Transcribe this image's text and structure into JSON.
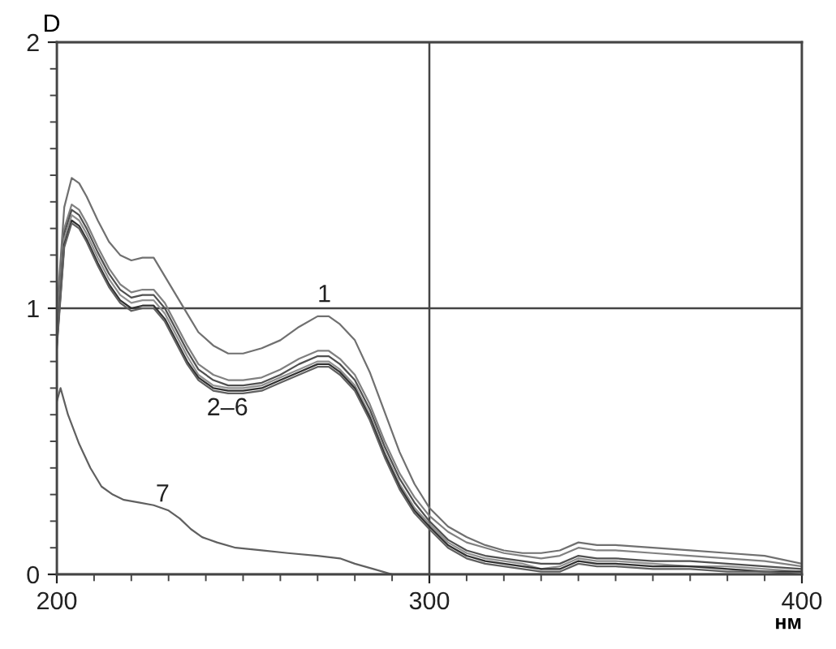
{
  "chart_data": {
    "type": "line",
    "xlabel": "нм",
    "ylabel": "D",
    "x": [
      200,
      202,
      204,
      206,
      208,
      211,
      214,
      217,
      220,
      223,
      226,
      229,
      232,
      235,
      238,
      242,
      246,
      250,
      255,
      260,
      265,
      270,
      273,
      276,
      280,
      284,
      288,
      292,
      296,
      300,
      305,
      310,
      315,
      320,
      325,
      330,
      335,
      340,
      345,
      350,
      360,
      370,
      380,
      390,
      400
    ],
    "series": [
      {
        "color": "#707070",
        "values": [
          0.98,
          1.38,
          1.49,
          1.47,
          1.42,
          1.33,
          1.25,
          1.2,
          1.18,
          1.19,
          1.19,
          1.12,
          1.05,
          0.98,
          0.91,
          0.86,
          0.83,
          0.83,
          0.85,
          0.88,
          0.93,
          0.97,
          0.97,
          0.94,
          0.88,
          0.76,
          0.61,
          0.46,
          0.34,
          0.25,
          0.18,
          0.14,
          0.11,
          0.09,
          0.08,
          0.08,
          0.09,
          0.12,
          0.11,
          0.11,
          0.1,
          0.09,
          0.08,
          0.07,
          0.04
        ]
      },
      {
        "color": "#808080",
        "values": [
          0.9,
          1.3,
          1.39,
          1.37,
          1.32,
          1.23,
          1.15,
          1.09,
          1.06,
          1.07,
          1.07,
          1.02,
          0.94,
          0.86,
          0.79,
          0.75,
          0.73,
          0.73,
          0.74,
          0.77,
          0.81,
          0.84,
          0.84,
          0.81,
          0.75,
          0.64,
          0.5,
          0.38,
          0.29,
          0.22,
          0.16,
          0.12,
          0.1,
          0.08,
          0.07,
          0.06,
          0.07,
          0.1,
          0.09,
          0.09,
          0.08,
          0.07,
          0.06,
          0.05,
          0.03
        ]
      },
      {
        "color": "#505050",
        "values": [
          0.88,
          1.28,
          1.37,
          1.35,
          1.3,
          1.21,
          1.13,
          1.07,
          1.04,
          1.05,
          1.05,
          1.0,
          0.92,
          0.84,
          0.77,
          0.73,
          0.71,
          0.71,
          0.72,
          0.75,
          0.79,
          0.82,
          0.82,
          0.79,
          0.73,
          0.62,
          0.48,
          0.36,
          0.27,
          0.2,
          0.13,
          0.09,
          0.07,
          0.06,
          0.05,
          0.04,
          0.04,
          0.07,
          0.06,
          0.06,
          0.05,
          0.05,
          0.04,
          0.03,
          0.02
        ]
      },
      {
        "color": "#909090",
        "values": [
          0.87,
          1.26,
          1.35,
          1.33,
          1.28,
          1.19,
          1.11,
          1.05,
          1.02,
          1.03,
          1.03,
          0.98,
          0.9,
          0.82,
          0.75,
          0.71,
          0.7,
          0.7,
          0.71,
          0.74,
          0.77,
          0.8,
          0.8,
          0.77,
          0.71,
          0.6,
          0.46,
          0.34,
          0.25,
          0.19,
          0.12,
          0.08,
          0.06,
          0.05,
          0.04,
          0.02,
          0.03,
          0.06,
          0.05,
          0.05,
          0.04,
          0.03,
          0.03,
          0.02,
          0.01
        ]
      },
      {
        "color": "#303030",
        "values": [
          0.86,
          1.24,
          1.33,
          1.31,
          1.26,
          1.17,
          1.09,
          1.03,
          1.0,
          1.01,
          1.01,
          0.96,
          0.88,
          0.8,
          0.74,
          0.7,
          0.69,
          0.69,
          0.7,
          0.73,
          0.76,
          0.79,
          0.79,
          0.76,
          0.7,
          0.59,
          0.45,
          0.33,
          0.24,
          0.18,
          0.11,
          0.07,
          0.05,
          0.04,
          0.03,
          0.02,
          0.02,
          0.05,
          0.04,
          0.04,
          0.03,
          0.03,
          0.02,
          0.01,
          0.01
        ]
      },
      {
        "color": "#606060",
        "values": [
          0.85,
          1.23,
          1.32,
          1.3,
          1.25,
          1.16,
          1.08,
          1.02,
          0.99,
          1.0,
          1.0,
          0.95,
          0.87,
          0.79,
          0.73,
          0.69,
          0.68,
          0.68,
          0.69,
          0.72,
          0.75,
          0.78,
          0.78,
          0.75,
          0.69,
          0.58,
          0.44,
          0.32,
          0.23,
          0.17,
          0.1,
          0.06,
          0.04,
          0.03,
          0.02,
          0.01,
          0.01,
          0.04,
          0.03,
          0.03,
          0.02,
          0.02,
          0.01,
          0.01,
          0.0
        ]
      },
      {
        "color": "#606060",
        "x": [
          200,
          201,
          203,
          206,
          209,
          212,
          215,
          218,
          222,
          226,
          230,
          233,
          236,
          239,
          243,
          248,
          255,
          262,
          270,
          276,
          280,
          285,
          290
        ],
        "values": [
          0.65,
          0.7,
          0.6,
          0.49,
          0.4,
          0.33,
          0.3,
          0.28,
          0.27,
          0.26,
          0.24,
          0.21,
          0.17,
          0.14,
          0.12,
          0.1,
          0.09,
          0.08,
          0.07,
          0.06,
          0.04,
          0.02,
          0.0
        ]
      }
    ],
    "annotations": [
      "1",
      "2–6",
      "7"
    ],
    "xlim": [
      200,
      400
    ],
    "xticks": [
      200,
      300,
      400
    ],
    "ylim": [
      0,
      2
    ],
    "yticks": [
      0,
      1,
      2
    ],
    "grid": true
  }
}
